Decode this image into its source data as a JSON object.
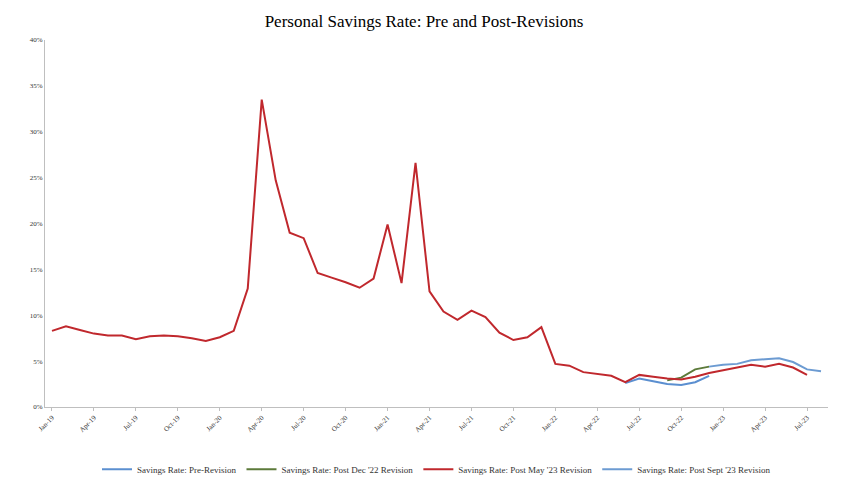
{
  "chart_data": {
    "type": "line",
    "title": "Personal Savings Rate: Pre and Post-Revisions",
    "categories": [
      "Jan-19",
      null,
      null,
      "Apr-19",
      null,
      null,
      "Jul-19",
      null,
      null,
      "Oct-19",
      null,
      null,
      "Jan-20",
      null,
      null,
      "Apr-20",
      null,
      null,
      "Jul-20",
      null,
      null,
      "Oct-20",
      null,
      null,
      "Jan-21",
      null,
      null,
      "Apr-21",
      null,
      null,
      "Jul-21",
      null,
      null,
      "Oct-21",
      null,
      null,
      "Jan-22",
      null,
      null,
      "Apr-22",
      null,
      null,
      "Jul-22",
      null,
      null,
      "Oct-22",
      null,
      null,
      "Jan-23",
      null,
      null,
      "Apr-23",
      null,
      null,
      "Jul-23",
      null
    ],
    "series": [
      {
        "name": "Savings Rate: Pre-Revision",
        "color": "#5b8fd0",
        "values": [
          null,
          null,
          null,
          null,
          null,
          null,
          null,
          null,
          null,
          null,
          null,
          null,
          null,
          null,
          null,
          null,
          null,
          null,
          null,
          null,
          null,
          null,
          null,
          null,
          null,
          null,
          null,
          null,
          null,
          null,
          null,
          null,
          null,
          null,
          null,
          null,
          null,
          null,
          null,
          null,
          null,
          2.6,
          3.1,
          2.8,
          2.5,
          2.4,
          2.7,
          3.4,
          null,
          null,
          null,
          null,
          null,
          null,
          null,
          null
        ]
      },
      {
        "name": "Savings Rate: Post Dec '22 Revision",
        "color": "#5c7a3a",
        "values": [
          null,
          null,
          null,
          null,
          null,
          null,
          null,
          null,
          null,
          null,
          null,
          null,
          null,
          null,
          null,
          null,
          null,
          null,
          null,
          null,
          null,
          null,
          null,
          null,
          null,
          null,
          null,
          null,
          null,
          null,
          null,
          null,
          null,
          null,
          null,
          null,
          null,
          null,
          null,
          null,
          null,
          null,
          null,
          null,
          2.9,
          3.2,
          4.1,
          4.4,
          null,
          null,
          null,
          null,
          null,
          null,
          null,
          null
        ]
      },
      {
        "name": "Savings Rate: Post May '23 Revision",
        "color": "#c0282d",
        "values": [
          8.3,
          8.8,
          8.4,
          8.0,
          7.8,
          7.8,
          7.4,
          7.7,
          7.8,
          7.7,
          7.5,
          7.2,
          7.6,
          8.3,
          12.9,
          33.5,
          24.7,
          19.0,
          18.4,
          14.6,
          14.1,
          13.6,
          13.0,
          14.0,
          19.9,
          13.5,
          26.6,
          12.6,
          10.4,
          9.5,
          10.5,
          9.8,
          8.1,
          7.3,
          7.6,
          8.7,
          4.7,
          4.5,
          3.8,
          3.6,
          3.4,
          2.7,
          3.5,
          3.3,
          3.1,
          3.0,
          3.3,
          3.7,
          4.0,
          4.3,
          4.6,
          4.4,
          4.7,
          4.3,
          3.5,
          null
        ]
      },
      {
        "name": "Savings Rate: Post Sept '23 Revision",
        "color": "#6c9bd2",
        "values": [
          null,
          null,
          null,
          null,
          null,
          null,
          null,
          null,
          null,
          null,
          null,
          null,
          null,
          null,
          null,
          null,
          null,
          null,
          null,
          null,
          null,
          null,
          null,
          null,
          null,
          null,
          null,
          null,
          null,
          null,
          null,
          null,
          null,
          null,
          null,
          null,
          null,
          null,
          null,
          null,
          null,
          null,
          null,
          null,
          null,
          null,
          null,
          4.4,
          4.6,
          4.7,
          5.1,
          5.2,
          5.3,
          4.9,
          4.1,
          3.9
        ]
      }
    ],
    "ylim": [
      0,
      40
    ],
    "yticks": [
      {
        "value": 0,
        "label": "0%"
      },
      {
        "value": 5,
        "label": "5%"
      },
      {
        "value": 10,
        "label": "10%"
      },
      {
        "value": 15,
        "label": "15%"
      },
      {
        "value": 20,
        "label": "20%"
      },
      {
        "value": 25,
        "label": "25%"
      },
      {
        "value": 30,
        "label": "30%"
      },
      {
        "value": 35,
        "label": "35%"
      },
      {
        "value": 40,
        "label": "40%"
      }
    ],
    "grid": false,
    "legend": "bottom"
  }
}
